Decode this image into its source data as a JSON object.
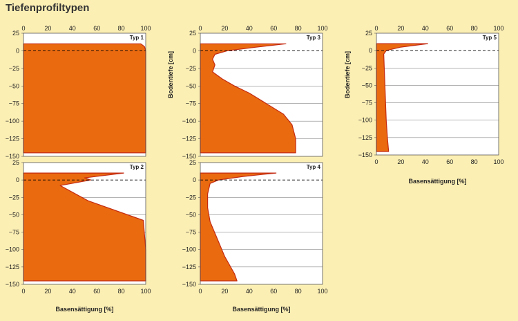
{
  "figure_title": "Tiefenprofiltypen",
  "colors": {
    "background": "#fcefb4",
    "fill": "#ea6a10",
    "outline": "#c42b12",
    "grid": "#888888",
    "zero_line": "#000000",
    "plot_bg": "#ffffff"
  },
  "chart_data": [
    {
      "type": "area",
      "label": "Typ 1",
      "xlim": [
        0,
        100
      ],
      "ylim": [
        -150,
        25
      ],
      "xticks": [
        0,
        20,
        40,
        60,
        80,
        100
      ],
      "yticks": [
        25,
        0,
        -25,
        -50,
        -75,
        -100,
        -125,
        -150
      ],
      "grid_y": [
        -25,
        -50,
        -75,
        -100,
        -125
      ],
      "zero_line": true,
      "show_top_ticks": true,
      "show_bottom_ticks": false,
      "xlabel": "",
      "ylabel": "",
      "profile": [
        [
          0,
          10
        ],
        [
          96,
          10
        ],
        [
          99,
          6
        ],
        [
          100,
          0
        ],
        [
          100,
          -145
        ],
        [
          0,
          -145
        ]
      ]
    },
    {
      "type": "area",
      "label": "Typ 2",
      "xlim": [
        0,
        100
      ],
      "ylim": [
        -150,
        25
      ],
      "xticks": [
        0,
        20,
        40,
        60,
        80,
        100
      ],
      "yticks": [
        25,
        0,
        -25,
        -50,
        -75,
        -100,
        -125,
        -150
      ],
      "grid_y": [
        -25,
        -50,
        -75,
        -100,
        -125
      ],
      "zero_line": true,
      "show_top_ticks": false,
      "show_bottom_ticks": true,
      "xlabel": "Basensättigung [%]",
      "ylabel": "",
      "profile": [
        [
          0,
          10
        ],
        [
          82,
          10
        ],
        [
          50,
          3
        ],
        [
          55,
          0
        ],
        [
          30,
          -8
        ],
        [
          53,
          -30
        ],
        [
          98,
          -58
        ],
        [
          100,
          -100
        ],
        [
          100,
          -145
        ],
        [
          0,
          -145
        ]
      ]
    },
    {
      "type": "area",
      "label": "Typ 3",
      "xlim": [
        0,
        100
      ],
      "ylim": [
        -150,
        25
      ],
      "xticks": [
        0,
        20,
        40,
        60,
        80,
        100
      ],
      "yticks": [
        25,
        0,
        -25,
        -50,
        -75,
        -100,
        -125,
        -150
      ],
      "grid_y": [
        -25,
        -50,
        -75,
        -100,
        -125
      ],
      "zero_line": true,
      "show_top_ticks": true,
      "show_bottom_ticks": false,
      "xlabel": "",
      "ylabel": "Bodentiefe [cm]",
      "profile": [
        [
          0,
          10
        ],
        [
          70,
          10
        ],
        [
          45,
          5
        ],
        [
          22,
          0
        ],
        [
          12,
          -5
        ],
        [
          10,
          -12
        ],
        [
          12,
          -20
        ],
        [
          10,
          -30
        ],
        [
          18,
          -40
        ],
        [
          28,
          -50
        ],
        [
          40,
          -60
        ],
        [
          54,
          -75
        ],
        [
          68,
          -90
        ],
        [
          75,
          -105
        ],
        [
          78,
          -125
        ],
        [
          78,
          -145
        ],
        [
          0,
          -145
        ]
      ]
    },
    {
      "type": "area",
      "label": "Typ 4",
      "xlim": [
        0,
        100
      ],
      "ylim": [
        -150,
        25
      ],
      "xticks": [
        0,
        20,
        40,
        60,
        80,
        100
      ],
      "yticks": [
        25,
        0,
        -25,
        -50,
        -75,
        -100,
        -125,
        -150
      ],
      "grid_y": [
        -25,
        -50,
        -75,
        -100,
        -125
      ],
      "zero_line": true,
      "show_top_ticks": false,
      "show_bottom_ticks": true,
      "xlabel": "Basensättigung [%]",
      "ylabel": "",
      "profile": [
        [
          0,
          10
        ],
        [
          62,
          10
        ],
        [
          35,
          5
        ],
        [
          15,
          0
        ],
        [
          8,
          -5
        ],
        [
          6,
          -20
        ],
        [
          6,
          -40
        ],
        [
          8,
          -60
        ],
        [
          14,
          -85
        ],
        [
          20,
          -110
        ],
        [
          28,
          -135
        ],
        [
          30,
          -145
        ],
        [
          0,
          -145
        ]
      ]
    },
    {
      "type": "area",
      "label": "Typ 5",
      "xlim": [
        0,
        100
      ],
      "ylim": [
        -150,
        25
      ],
      "xticks": [
        0,
        20,
        40,
        60,
        80,
        100
      ],
      "yticks": [
        25,
        0,
        -25,
        -50,
        -75,
        -100,
        -125,
        -150
      ],
      "grid_y": [
        -25,
        -50,
        -75,
        -100,
        -125
      ],
      "zero_line": true,
      "show_top_ticks": true,
      "show_bottom_ticks": true,
      "xlabel": "Basensättigung [%]",
      "ylabel": "Bodentiefe [cm]",
      "profile": [
        [
          0,
          10
        ],
        [
          42,
          10
        ],
        [
          20,
          5
        ],
        [
          8,
          0
        ],
        [
          6,
          -5
        ],
        [
          8,
          -100
        ],
        [
          9,
          -125
        ],
        [
          10,
          -145
        ],
        [
          0,
          -145
        ]
      ]
    }
  ]
}
